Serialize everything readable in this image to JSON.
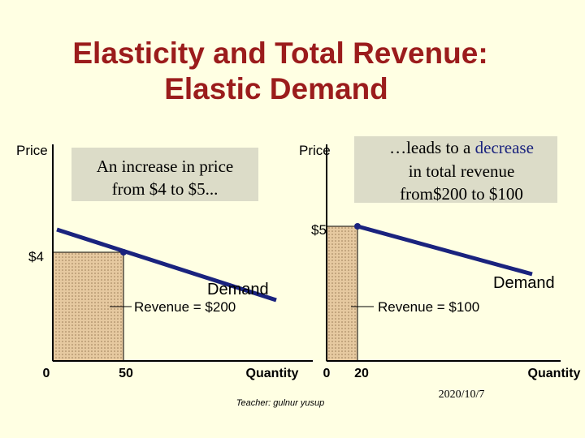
{
  "title": [
    "Elasticity and Total Revenue:",
    "Elastic Demand"
  ],
  "left_panel": {
    "y_label": "Price",
    "x_label": "Quantity",
    "price": "$4",
    "origin": "0",
    "quantity": "50",
    "curve_label": "Demand",
    "revenue": "Revenue = $200",
    "callout": [
      "An increase in price",
      "from $4 to $5..."
    ]
  },
  "right_panel": {
    "y_label": "Price",
    "x_label": "Quantity",
    "price": "$5",
    "origin": "0",
    "quantity": "20",
    "curve_label": "Demand",
    "revenue": "Revenue = $100",
    "callout": [
      "…leads to a",
      "decrease",
      "in total revenue",
      "from$200 to $100"
    ]
  },
  "footer": {
    "teacher": "Teacher: gulnur yusup",
    "date": "2020/10/7"
  }
}
